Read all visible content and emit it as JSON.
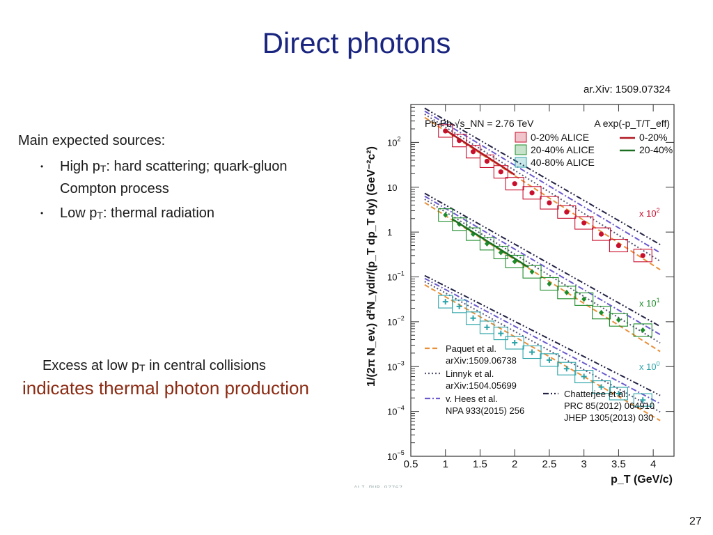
{
  "slide": {
    "title": "Direct photons",
    "reference": "ar.Xiv: 1509.07324",
    "sources_heading": "Main expected sources:",
    "bullets": [
      {
        "prefix": "High p",
        "sub": "T",
        "text_line1": ": hard scattering; quark-gluon",
        "text_line2": "Compton process"
      },
      {
        "prefix": "Low p",
        "sub": "T",
        "text_line1": ": thermal radiation"
      }
    ],
    "excess_prefix": "Excess at low p",
    "excess_sub": "T",
    "excess_suffix": " in central collisions",
    "conclusion": "indicates thermal photon production",
    "page_number": "27"
  },
  "chart_data": {
    "type": "scatter",
    "ylabel": "1/(2π N_ev.) d²N_γdir/(p_T dp_T dy) (GeV⁻²c²)",
    "xlabel": "p_T (GeV/c)",
    "yscale": "log",
    "xlim": [
      0.5,
      4.3
    ],
    "ylim": [
      1e-05,
      700
    ],
    "x_ticks": [
      "0.5",
      "1",
      "1.5",
      "2",
      "2.5",
      "3",
      "3.5",
      "4"
    ],
    "y_ticks": [
      "10^{-5}",
      "10^{-4}",
      "10^{-3}",
      "10^{-2}",
      "10^{-1}",
      "1",
      "10",
      "10^{2}"
    ],
    "header_left": "Pb-Pb √s_NN = 2.76 TeV",
    "header_right": "A exp(-p_T/T_eff)",
    "legend": [
      {
        "label": "0-20% ALICE",
        "color": "#c8102e",
        "marker": "circle"
      },
      {
        "label": "20-40% ALICE",
        "color": "#1e8c2a",
        "marker": "diamond"
      },
      {
        "label": "40-80% ALICE",
        "color": "#2aa3a8",
        "marker": "cross"
      },
      {
        "label": "0-20%",
        "color": "#b01822",
        "marker": "line"
      },
      {
        "label": "20-40%",
        "color": "#1a7020",
        "marker": "line"
      }
    ],
    "scale_labels": [
      "x 10^2",
      "x 10^1",
      "x 10^0"
    ],
    "model_legend": [
      {
        "lines": [
          "Paquet et al.",
          "arXiv:1509.06738"
        ],
        "color": "#e8903a",
        "style": "dashed"
      },
      {
        "lines": [
          "Linnyk et al.",
          "arXiv:1504.05699"
        ],
        "color": "#555577",
        "style": "dotted"
      },
      {
        "lines": [
          "v. Hees et al.",
          "NPA 933(2015) 256"
        ],
        "color": "#6a5acd",
        "style": "dashdot"
      },
      {
        "lines": [
          "Chatterjee et al.",
          "PRC 85(2012) 064910",
          "JHEP 1305(2013) 030"
        ],
        "color": "#222244",
        "style": "dashdotdot"
      }
    ],
    "watermark": "ALI-PUB-97767",
    "series": [
      {
        "name": "0-20% ALICE",
        "color": "#c8102e",
        "x": [
          1.0,
          1.2,
          1.4,
          1.6,
          1.8,
          2.0,
          2.25,
          2.5,
          2.75,
          3.0,
          3.25,
          3.5,
          3.85
        ],
        "y": [
          180,
          110,
          62,
          38,
          22,
          12,
          7.5,
          4.5,
          2.8,
          1.6,
          0.9,
          0.5,
          0.3
        ]
      },
      {
        "name": "20-40% ALICE",
        "color": "#1e8c2a",
        "x": [
          1.0,
          1.2,
          1.4,
          1.6,
          1.8,
          2.0,
          2.25,
          2.5,
          2.75,
          3.0,
          3.25,
          3.5,
          3.85
        ],
        "y": [
          2.4,
          1.5,
          0.9,
          0.55,
          0.35,
          0.22,
          0.13,
          0.07,
          0.045,
          0.032,
          0.016,
          0.011,
          0.0065
        ]
      },
      {
        "name": "40-80% ALICE",
        "color": "#2aa3a8",
        "x": [
          1.0,
          1.2,
          1.4,
          1.6,
          1.8,
          2.0,
          2.25,
          2.5,
          2.75,
          3.0,
          3.25,
          3.5,
          3.85
        ],
        "y": [
          0.028,
          0.022,
          0.012,
          0.0075,
          0.0055,
          0.0034,
          0.0021,
          0.0014,
          0.0009,
          0.0006,
          0.00035,
          0.00025,
          0.00018
        ]
      }
    ]
  }
}
